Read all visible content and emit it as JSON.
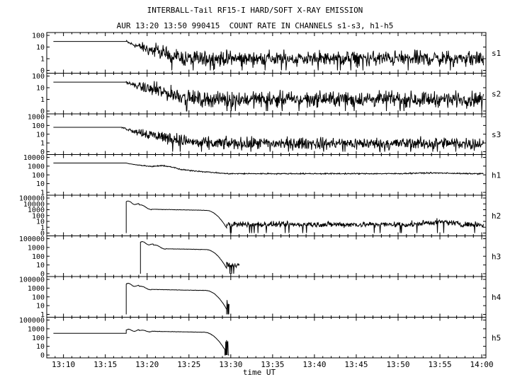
{
  "title": "INTERBALL-Tail RF15-I HARD/SOFT X-RAY EMISSION",
  "subtitle": "AUR 13:20 13:50 990415  COUNT RATE IN CHANNELS s1-s3, h1-h5",
  "chart_data": {
    "type": "line",
    "xlabel": "time UT",
    "x_tick_labels": [
      "13:10",
      "13:15",
      "13:20",
      "13:25",
      "13:30",
      "13:35",
      "13:40",
      "13:45",
      "13:50",
      "13:55",
      "14:00"
    ],
    "x_tick_minutes": [
      790,
      795,
      800,
      805,
      810,
      815,
      820,
      825,
      830,
      835,
      840
    ],
    "xlim_minutes": [
      788,
      840.5
    ],
    "y_scale": "log",
    "grid": false,
    "panels": [
      {
        "name": "s1",
        "tick_labels": [
          "100",
          "10",
          "1",
          "0"
        ],
        "ymax_decades": 2,
        "series": {
          "pre_value": 40,
          "onset_min": 797.5,
          "decay_end_min": 804.5,
          "level": 3,
          "noise": 0.35,
          "dropouts": true
        }
      },
      {
        "name": "s2",
        "tick_labels": [
          "100",
          "10",
          "1",
          "0"
        ],
        "ymax_decades": 2,
        "series": {
          "pre_value": 40,
          "onset_min": 797.5,
          "decay_end_min": 806,
          "level": 3,
          "noise": 0.35,
          "dropouts": true
        }
      },
      {
        "name": "s3",
        "tick_labels": [
          "1000",
          "100",
          "10",
          "1",
          "0"
        ],
        "ymax_decades": 3,
        "series": {
          "pre_value": 100,
          "onset_min": 797,
          "decay_end_min": 806.5,
          "level": 3,
          "noise": 0.4,
          "dropouts": true
        }
      },
      {
        "name": "h1",
        "tick_labels": [
          "10000",
          "1000",
          "100",
          "10",
          "1"
        ],
        "ymax_decades": 4,
        "series": {
          "pre_value": 2000,
          "onset_min": 797.5,
          "decay_end_min": 809.5,
          "level": 100,
          "noise": 0.05,
          "dropouts": false
        }
      },
      {
        "name": "h2",
        "tick_labels": [
          "100000",
          "10000",
          "1000",
          "100",
          "10",
          "1",
          "0"
        ],
        "ymax_decades": 5,
        "series": {
          "start_min": 797.5,
          "peak_value": 30000,
          "plateau_value": 2000,
          "cutoff_min": 809.5,
          "level": 10,
          "noise": 0.3,
          "dropouts": true
        }
      },
      {
        "name": "h3",
        "tick_labels": [
          "100000",
          "1000",
          "100",
          "10",
          "0"
        ],
        "ymax_decades": 5,
        "series": {
          "start_min": 799.2,
          "peak_value": 30000,
          "plateau_value": 3000,
          "cutoff_min": 809.5,
          "end_min": 811,
          "level": 10,
          "noise": 0.3,
          "dropouts": true
        }
      },
      {
        "name": "h4",
        "tick_labels": [
          "100000",
          "1000",
          "100",
          "10",
          "1"
        ],
        "ymax_decades": 5,
        "series": {
          "start_min": 797.5,
          "peak_value": 20000,
          "plateau_value": 3000,
          "cutoff_min": 809.5,
          "end_min": 809.8,
          "level": 0,
          "noise": 0.05,
          "dropouts": false
        }
      },
      {
        "name": "h5",
        "tick_labels": [
          "100000",
          "1000",
          "100",
          "10",
          "0"
        ],
        "ymax_decades": 5,
        "series": {
          "pre_value": 1000,
          "start_min": 797.5,
          "peak_value": 3000,
          "plateau_value": 2000,
          "cutoff_min": 809.3,
          "end_min": 809.8,
          "level": 0,
          "noise": 0.05,
          "dropouts": false
        }
      }
    ]
  }
}
